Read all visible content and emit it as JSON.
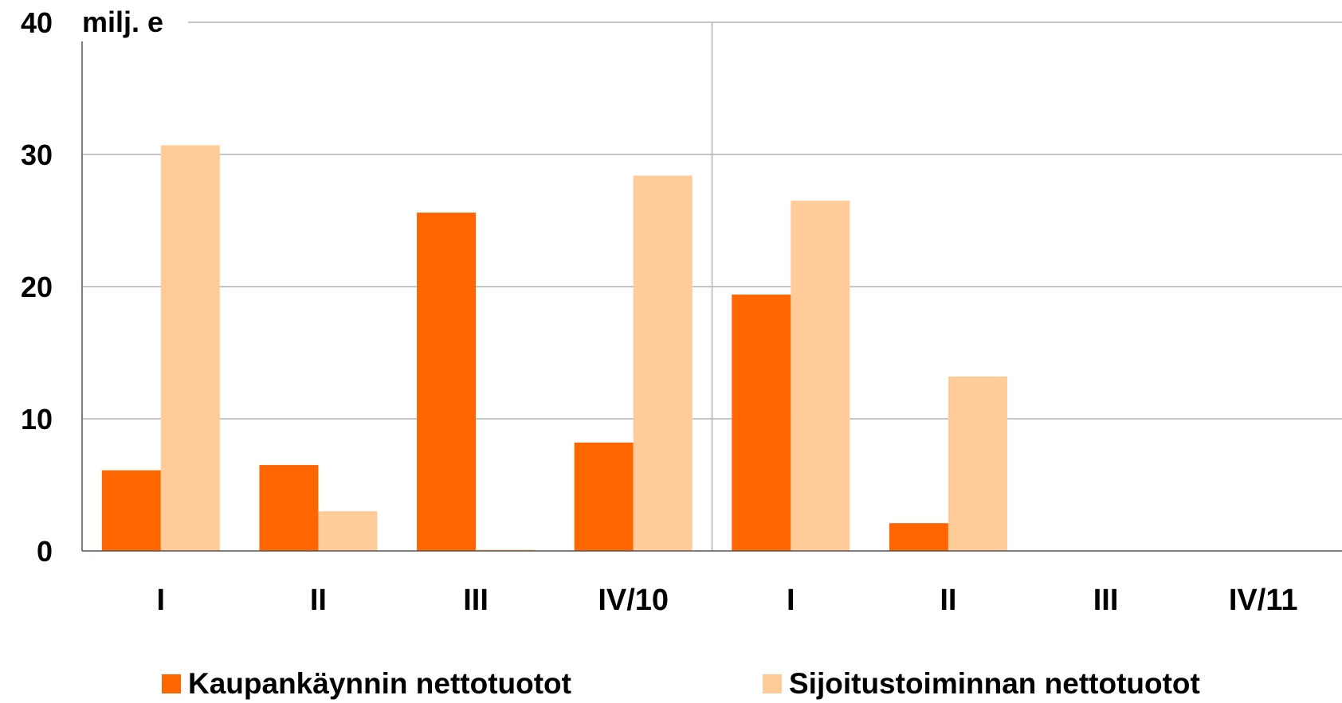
{
  "chart_data": {
    "type": "bar",
    "unit_label": "milj. e",
    "categories": [
      "I",
      "II",
      "III",
      "IV/10",
      "I",
      "II",
      "III",
      "IV/11"
    ],
    "series": [
      {
        "name": "Kaupankäynnin nettotuotot",
        "color": "#FF6600",
        "values": [
          6.1,
          6.5,
          25.6,
          8.2,
          19.4,
          2.1,
          null,
          null
        ]
      },
      {
        "name": "Sijoitustoiminnan nettotuotot",
        "color": "#FFCC99",
        "values": [
          30.7,
          3.0,
          0.1,
          28.4,
          26.5,
          13.2,
          null,
          null
        ]
      }
    ],
    "ylim": [
      0,
      40
    ],
    "yticks": [
      0,
      10,
      20,
      30,
      40
    ],
    "grid": true,
    "group_separator_after": 4,
    "legend_position": "bottom"
  }
}
